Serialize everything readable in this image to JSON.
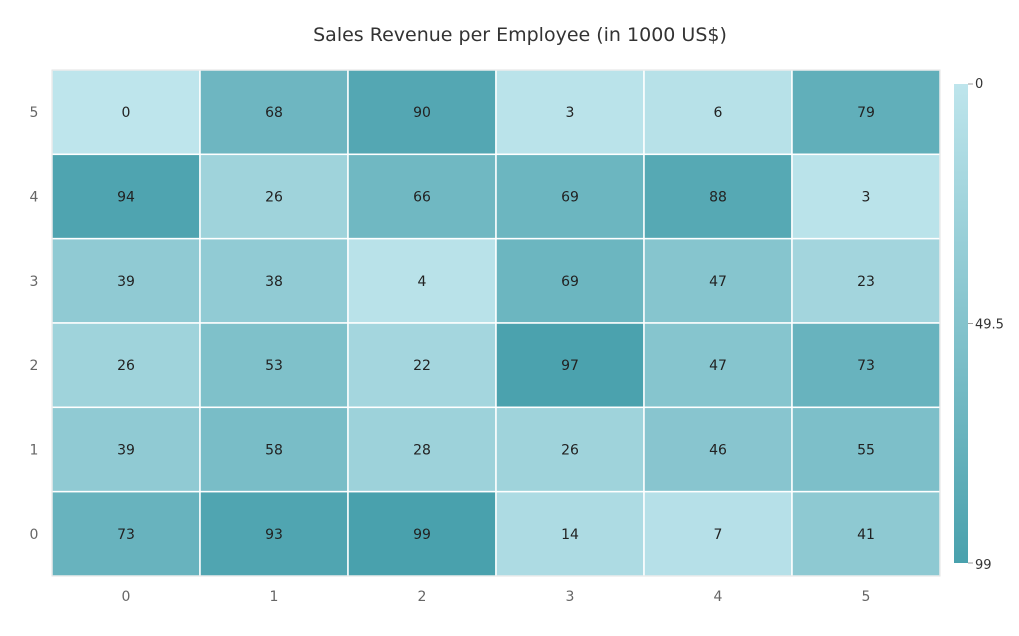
{
  "chart_data": {
    "type": "heatmap",
    "title": "Sales Revenue per Employee (in 1000 US$)",
    "x_categories": [
      "0",
      "1",
      "2",
      "3",
      "4",
      "5"
    ],
    "y_categories": [
      "0",
      "1",
      "2",
      "3",
      "4",
      "5"
    ],
    "matrix_rows_top_to_bottom": [
      {
        "y": "5",
        "values": [
          0,
          68,
          90,
          3,
          6,
          79
        ]
      },
      {
        "y": "4",
        "values": [
          94,
          26,
          66,
          69,
          88,
          3
        ]
      },
      {
        "y": "3",
        "values": [
          39,
          38,
          4,
          69,
          47,
          23
        ]
      },
      {
        "y": "2",
        "values": [
          26,
          53,
          22,
          97,
          47,
          73
        ]
      },
      {
        "y": "1",
        "values": [
          39,
          58,
          28,
          26,
          46,
          55
        ]
      },
      {
        "y": "0",
        "values": [
          73,
          93,
          99,
          14,
          7,
          41
        ]
      }
    ],
    "value_range": [
      0,
      99
    ],
    "color_scale": {
      "min_color": "#bee5ec",
      "max_color": "#49a1ad"
    },
    "legend": {
      "position": "right",
      "labels": [
        "0",
        "49.5",
        "99"
      ]
    },
    "grid_line_color": "#ffffff"
  }
}
